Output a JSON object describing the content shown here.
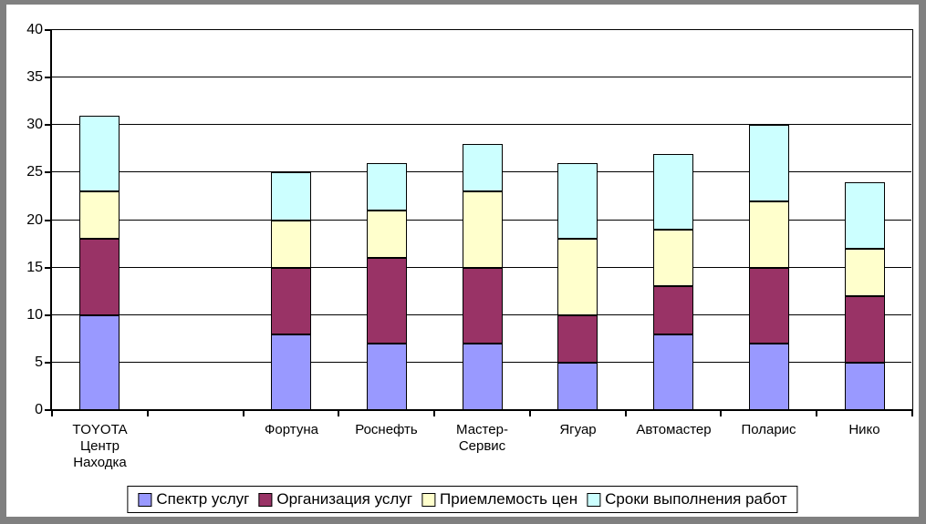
{
  "chart_data": {
    "type": "bar",
    "stacked": true,
    "title": "",
    "xlabel": "",
    "ylabel": "",
    "categories": [
      "TOYOTA\nЦентр\nНаходка",
      "",
      "Фортуна",
      "Роснефть",
      "Мастер-\nСервис",
      "Ягуар",
      "Автомастер",
      "Поларис",
      "Нико"
    ],
    "series": [
      {
        "name": "Спектр услуг",
        "color": "#9999FF",
        "values": [
          10,
          null,
          8,
          7,
          7,
          5,
          8,
          7,
          5
        ]
      },
      {
        "name": "Организация услуг",
        "color": "#993366",
        "values": [
          8,
          null,
          7,
          9,
          8,
          5,
          5,
          8,
          7
        ]
      },
      {
        "name": "Приемлемость цен",
        "color": "#FFFFCC",
        "values": [
          5,
          null,
          5,
          5,
          8,
          8,
          6,
          7,
          5
        ]
      },
      {
        "name": "Сроки выполнения работ",
        "color": "#CCFFFF",
        "values": [
          8,
          null,
          5,
          5,
          5,
          8,
          8,
          8,
          7
        ]
      }
    ],
    "totals": [
      31,
      null,
      25,
      26,
      28,
      26,
      27,
      30,
      24
    ],
    "ylim": [
      0,
      40
    ],
    "yticks": [
      0,
      5,
      10,
      15,
      20,
      25,
      30,
      35,
      40
    ],
    "grid": true,
    "legend_position": "bottom",
    "colors": {
      "frame": "#808080",
      "plot_background": "#FFFFFF",
      "axis_line": "#000000",
      "text": "#000000"
    }
  }
}
